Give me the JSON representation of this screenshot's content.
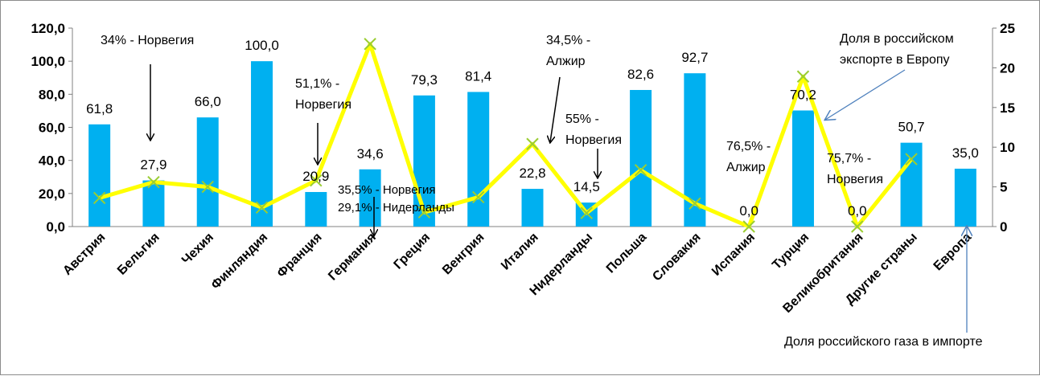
{
  "chart_data": {
    "type": "bar",
    "categories": [
      "Австрия",
      "Бельгия",
      "Чехия",
      "Финляндия",
      "Франция",
      "Германия",
      "Греция",
      "Венгрия",
      "Италия",
      "Нидерланды",
      "Польша",
      "Словакия",
      "Испания",
      "Турция",
      "Великобритания",
      "Другие страны",
      "Европа"
    ],
    "series": [
      {
        "name": "Доля российского газа в импорте",
        "type": "bar",
        "axis": "left",
        "color": "#00b0f0",
        "values": [
          61.8,
          27.9,
          66.0,
          100.0,
          20.9,
          34.6,
          79.3,
          81.4,
          22.8,
          14.5,
          82.6,
          92.7,
          0.0,
          70.2,
          0.0,
          50.7,
          35.0
        ],
        "labels": [
          "61,8",
          "27,9",
          "66,0",
          "100,0",
          "20,9",
          "34,6",
          "79,3",
          "81,4",
          "22,8",
          "14,5",
          "82,6",
          "92,7",
          "0,0",
          "70,2",
          "0,0",
          "50,7",
          "35,0"
        ]
      },
      {
        "name": "Доля в российском экспорте в Европу",
        "type": "line",
        "axis": "right",
        "color": "#ffff00",
        "marker": "x",
        "values": [
          3.6,
          5.6,
          5.0,
          2.4,
          5.8,
          23.0,
          1.8,
          3.7,
          10.4,
          1.7,
          7.1,
          2.9,
          0.0,
          18.9,
          0.0,
          8.5,
          null
        ]
      }
    ],
    "y_left": {
      "min": 0,
      "max": 120,
      "step": 20,
      "tick_labels": [
        "0,0",
        "20,0",
        "40,0",
        "60,0",
        "80,0",
        "100,0",
        "120,0"
      ]
    },
    "y_right": {
      "min": 0,
      "max": 25,
      "step": 5,
      "tick_labels": [
        "0",
        "5",
        "10",
        "15",
        "20",
        "25"
      ]
    },
    "grid": false,
    "legend": "none",
    "annotations": {
      "belgium": "34% - Норвегия",
      "france_1": "51,1% -",
      "france_2": "Норвегия",
      "germany_1": "35,5% - Норвегия",
      "germany_2": "29,1% - Нидерланды",
      "italy_1": "34,5% -",
      "italy_2": "Алжир",
      "netherlands_1": "55% -",
      "netherlands_2": "Норвегия",
      "spain_1": "76,5% -",
      "spain_2": "Алжир",
      "uk_1": "75,7% -",
      "uk_2": "Норвегия",
      "export_1": "Доля в российском",
      "export_2": "экспорте в Европу",
      "import": "Доля российского газа в импорте"
    }
  }
}
